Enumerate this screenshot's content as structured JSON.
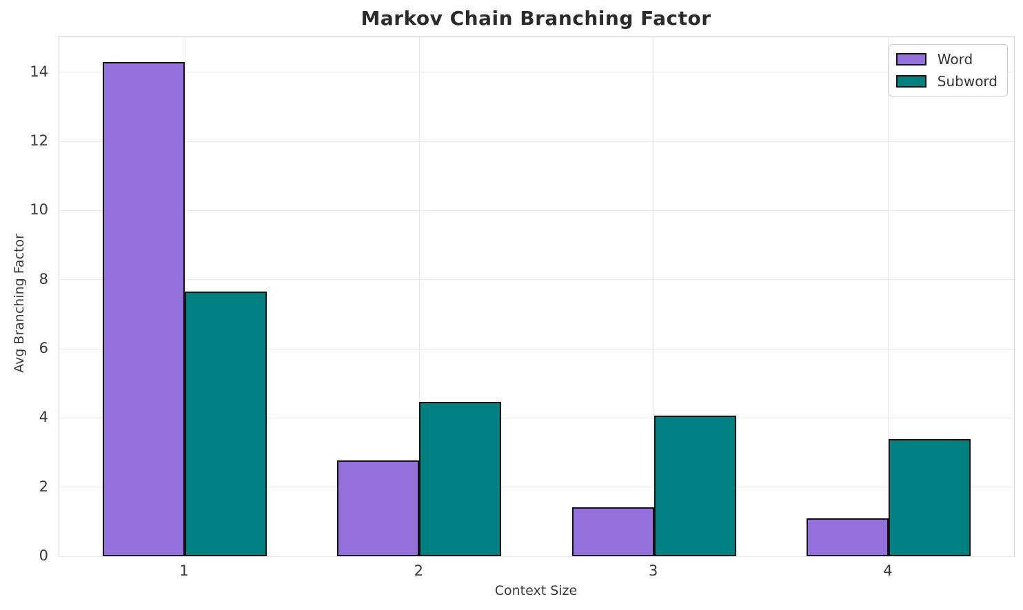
{
  "chart_data": {
    "type": "bar",
    "title": "Markov Chain Branching Factor",
    "xlabel": "Context Size",
    "ylabel": "Avg Branching Factor",
    "categories": [
      "1",
      "2",
      "3",
      "4"
    ],
    "series": [
      {
        "name": "Word",
        "color": "#9370DB",
        "values": [
          14.3,
          2.77,
          1.42,
          1.1
        ]
      },
      {
        "name": "Subword",
        "color": "#008080",
        "values": [
          7.66,
          4.46,
          4.07,
          3.39
        ]
      }
    ],
    "ylim": [
      0,
      15.03
    ],
    "yticks": [
      0,
      2,
      4,
      6,
      8,
      10,
      12,
      14
    ],
    "grid": true,
    "legend_position": "upper right",
    "bar_edgecolor": "#111111",
    "bar_width_fraction": 0.35
  }
}
